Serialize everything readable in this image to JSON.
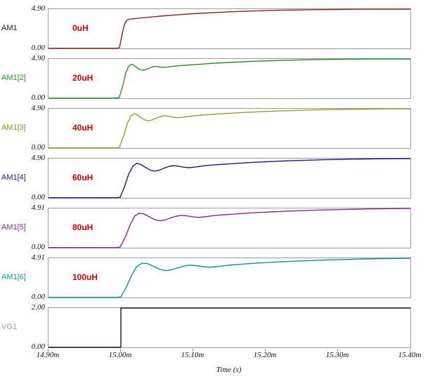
{
  "chart_data": {
    "type": "line",
    "title": "",
    "xlabel": "Time (s)",
    "ylabel": "",
    "x_range": [
      14.9,
      15.4
    ],
    "x_ticks": [
      "14.90m",
      "15.00m",
      "15.10m",
      "15.20m",
      "15.30m",
      "15.40m"
    ],
    "grid": false,
    "legend_position": "left-margin-labels",
    "annotation_color": "#cc0000",
    "frame_color": "#9a9a9a",
    "plots": [
      {
        "name": "AM1",
        "label_color": "#1a1a1a",
        "annotation": "0uH",
        "color": "#8b2222",
        "ylim": [
          0,
          4.9
        ],
        "y_top_label": "4.90",
        "y_bottom_label": "0.00",
        "points": [
          [
            14.9,
            0.02
          ],
          [
            14.994,
            0.02
          ],
          [
            14.998,
            0.08
          ],
          [
            15.002,
            1.9
          ],
          [
            15.005,
            3.05
          ],
          [
            15.008,
            3.5
          ],
          [
            15.011,
            3.62
          ],
          [
            15.015,
            3.68
          ],
          [
            15.02,
            3.73
          ],
          [
            15.03,
            3.82
          ],
          [
            15.045,
            3.95
          ],
          [
            15.06,
            4.07
          ],
          [
            15.08,
            4.21
          ],
          [
            15.1,
            4.33
          ],
          [
            15.12,
            4.43
          ],
          [
            15.14,
            4.52
          ],
          [
            15.16,
            4.6
          ],
          [
            15.18,
            4.66
          ],
          [
            15.2,
            4.71
          ],
          [
            15.22,
            4.76
          ],
          [
            15.24,
            4.79
          ],
          [
            15.26,
            4.82
          ],
          [
            15.28,
            4.84
          ],
          [
            15.3,
            4.86
          ],
          [
            15.32,
            4.88
          ],
          [
            15.34,
            4.89
          ],
          [
            15.37,
            4.9
          ],
          [
            15.4,
            4.9
          ]
        ]
      },
      {
        "name": "AM1[2]",
        "label_color": "#2e8b2e",
        "annotation": "20uH",
        "color": "#2e8b2e",
        "ylim": [
          0,
          4.9
        ],
        "y_top_label": "4.90",
        "y_bottom_label": "0.00",
        "points": [
          [
            14.9,
            0.02
          ],
          [
            14.994,
            0.02
          ],
          [
            14.998,
            0.1
          ],
          [
            15.003,
            1.7
          ],
          [
            15.007,
            3.2
          ],
          [
            15.011,
            4.0
          ],
          [
            15.014,
            4.22
          ],
          [
            15.017,
            4.18
          ],
          [
            15.021,
            3.9
          ],
          [
            15.026,
            3.6
          ],
          [
            15.03,
            3.5
          ],
          [
            15.034,
            3.56
          ],
          [
            15.039,
            3.76
          ],
          [
            15.044,
            3.92
          ],
          [
            15.048,
            3.97
          ],
          [
            15.053,
            3.9
          ],
          [
            15.058,
            3.84
          ],
          [
            15.064,
            3.88
          ],
          [
            15.07,
            3.96
          ],
          [
            15.08,
            4.05
          ],
          [
            15.092,
            4.13
          ],
          [
            15.106,
            4.22
          ],
          [
            15.122,
            4.32
          ],
          [
            15.14,
            4.42
          ],
          [
            15.16,
            4.51
          ],
          [
            15.18,
            4.59
          ],
          [
            15.2,
            4.66
          ],
          [
            15.22,
            4.71
          ],
          [
            15.24,
            4.76
          ],
          [
            15.26,
            4.8
          ],
          [
            15.28,
            4.83
          ],
          [
            15.3,
            4.85
          ],
          [
            15.32,
            4.87
          ],
          [
            15.34,
            4.88
          ],
          [
            15.37,
            4.9
          ],
          [
            15.4,
            4.9
          ]
        ]
      },
      {
        "name": "AM1[3]",
        "label_color": "#8f8f25",
        "annotation": "40uH",
        "color": "#9a9a30",
        "ylim": [
          0,
          4.9
        ],
        "y_top_label": "4.90",
        "y_bottom_label": "0.00",
        "points": [
          [
            14.9,
            0.02
          ],
          [
            14.994,
            0.02
          ],
          [
            14.998,
            0.1
          ],
          [
            15.004,
            1.55
          ],
          [
            15.009,
            3.1
          ],
          [
            15.014,
            4.02
          ],
          [
            15.018,
            4.28
          ],
          [
            15.022,
            4.18
          ],
          [
            15.027,
            3.82
          ],
          [
            15.033,
            3.5
          ],
          [
            15.038,
            3.4
          ],
          [
            15.043,
            3.5
          ],
          [
            15.049,
            3.74
          ],
          [
            15.055,
            3.94
          ],
          [
            15.06,
            4.02
          ],
          [
            15.066,
            3.96
          ],
          [
            15.072,
            3.85
          ],
          [
            15.078,
            3.79
          ],
          [
            15.085,
            3.84
          ],
          [
            15.093,
            3.95
          ],
          [
            15.102,
            4.04
          ],
          [
            15.112,
            4.11
          ],
          [
            15.125,
            4.19
          ],
          [
            15.14,
            4.28
          ],
          [
            15.16,
            4.39
          ],
          [
            15.18,
            4.48
          ],
          [
            15.2,
            4.56
          ],
          [
            15.22,
            4.63
          ],
          [
            15.24,
            4.69
          ],
          [
            15.26,
            4.74
          ],
          [
            15.28,
            4.78
          ],
          [
            15.3,
            4.81
          ],
          [
            15.32,
            4.84
          ],
          [
            15.34,
            4.86
          ],
          [
            15.37,
            4.89
          ],
          [
            15.4,
            4.9
          ]
        ]
      },
      {
        "name": "AM1[4]",
        "label_color": "#1a1a8c",
        "annotation": "60uH",
        "color": "#191985",
        "ylim": [
          0,
          4.9
        ],
        "y_top_label": "4.90",
        "y_bottom_label": "0.00",
        "points": [
          [
            14.9,
            0.02
          ],
          [
            14.994,
            0.02
          ],
          [
            14.999,
            0.08
          ],
          [
            15.005,
            1.4
          ],
          [
            15.011,
            3.0
          ],
          [
            15.017,
            4.0
          ],
          [
            15.022,
            4.3
          ],
          [
            15.027,
            4.2
          ],
          [
            15.034,
            3.8
          ],
          [
            15.041,
            3.44
          ],
          [
            15.047,
            3.33
          ],
          [
            15.053,
            3.45
          ],
          [
            15.06,
            3.72
          ],
          [
            15.067,
            3.94
          ],
          [
            15.073,
            4.02
          ],
          [
            15.08,
            3.95
          ],
          [
            15.087,
            3.82
          ],
          [
            15.094,
            3.76
          ],
          [
            15.102,
            3.83
          ],
          [
            15.111,
            3.95
          ],
          [
            15.12,
            4.05
          ],
          [
            15.131,
            4.13
          ],
          [
            15.144,
            4.21
          ],
          [
            15.158,
            4.3
          ],
          [
            15.175,
            4.39
          ],
          [
            15.192,
            4.47
          ],
          [
            15.21,
            4.54
          ],
          [
            15.228,
            4.61
          ],
          [
            15.246,
            4.66
          ],
          [
            15.264,
            4.71
          ],
          [
            15.282,
            4.76
          ],
          [
            15.3,
            4.79
          ],
          [
            15.32,
            4.83
          ],
          [
            15.34,
            4.85
          ],
          [
            15.37,
            4.88
          ],
          [
            15.4,
            4.9
          ]
        ]
      },
      {
        "name": "AM1[5]",
        "label_color": "#7d2a8c",
        "annotation": "80uH",
        "color": "#7d2a8c",
        "ylim": [
          0,
          4.91
        ],
        "y_top_label": "4.91",
        "y_bottom_label": "0.00",
        "points": [
          [
            14.9,
            0.02
          ],
          [
            14.994,
            0.02
          ],
          [
            14.999,
            0.08
          ],
          [
            15.006,
            1.3
          ],
          [
            15.013,
            2.9
          ],
          [
            15.019,
            3.95
          ],
          [
            15.025,
            4.3
          ],
          [
            15.031,
            4.24
          ],
          [
            15.039,
            3.88
          ],
          [
            15.047,
            3.5
          ],
          [
            15.054,
            3.36
          ],
          [
            15.061,
            3.47
          ],
          [
            15.069,
            3.73
          ],
          [
            15.077,
            3.95
          ],
          [
            15.084,
            4.04
          ],
          [
            15.091,
            3.98
          ],
          [
            15.099,
            3.85
          ],
          [
            15.107,
            3.79
          ],
          [
            15.116,
            3.86
          ],
          [
            15.126,
            3.98
          ],
          [
            15.136,
            4.07
          ],
          [
            15.148,
            4.15
          ],
          [
            15.161,
            4.23
          ],
          [
            15.176,
            4.32
          ],
          [
            15.192,
            4.4
          ],
          [
            15.21,
            4.48
          ],
          [
            15.228,
            4.55
          ],
          [
            15.246,
            4.62
          ],
          [
            15.264,
            4.67
          ],
          [
            15.282,
            4.72
          ],
          [
            15.3,
            4.76
          ],
          [
            15.32,
            4.8
          ],
          [
            15.34,
            4.84
          ],
          [
            15.36,
            4.86
          ],
          [
            15.38,
            4.89
          ],
          [
            15.4,
            4.91
          ]
        ]
      },
      {
        "name": "AM1[6]",
        "label_color": "#178f8f",
        "annotation": "100uH",
        "color": "#178f8f",
        "ylim": [
          0,
          4.91
        ],
        "y_top_label": "4.91",
        "y_bottom_label": "0.00",
        "points": [
          [
            14.9,
            0.02
          ],
          [
            14.995,
            0.02
          ],
          [
            15.0,
            0.08
          ],
          [
            15.007,
            1.2
          ],
          [
            15.015,
            2.8
          ],
          [
            15.022,
            3.88
          ],
          [
            15.029,
            4.28
          ],
          [
            15.036,
            4.26
          ],
          [
            15.045,
            3.92
          ],
          [
            15.054,
            3.52
          ],
          [
            15.062,
            3.36
          ],
          [
            15.07,
            3.46
          ],
          [
            15.079,
            3.72
          ],
          [
            15.088,
            3.94
          ],
          [
            15.096,
            4.05
          ],
          [
            15.104,
            3.99
          ],
          [
            15.113,
            3.86
          ],
          [
            15.122,
            3.79
          ],
          [
            15.132,
            3.86
          ],
          [
            15.143,
            3.98
          ],
          [
            15.154,
            4.08
          ],
          [
            15.166,
            4.16
          ],
          [
            15.18,
            4.25
          ],
          [
            15.195,
            4.33
          ],
          [
            15.212,
            4.42
          ],
          [
            15.23,
            4.5
          ],
          [
            15.248,
            4.57
          ],
          [
            15.266,
            4.63
          ],
          [
            15.284,
            4.69
          ],
          [
            15.302,
            4.73
          ],
          [
            15.32,
            4.78
          ],
          [
            15.34,
            4.82
          ],
          [
            15.36,
            4.85
          ],
          [
            15.38,
            4.88
          ],
          [
            15.4,
            4.91
          ]
        ]
      },
      {
        "name": "VG1",
        "label_color": "#9a9a9a",
        "annotation": "",
        "color": "#1a1a1a",
        "ylim": [
          0,
          2.0
        ],
        "y_top_label": "2.00",
        "y_bottom_label": "0.00",
        "points": [
          [
            14.9,
            0.0
          ],
          [
            15.0,
            0.0
          ],
          [
            15.0,
            2.0
          ],
          [
            15.4,
            2.0
          ]
        ]
      }
    ]
  }
}
